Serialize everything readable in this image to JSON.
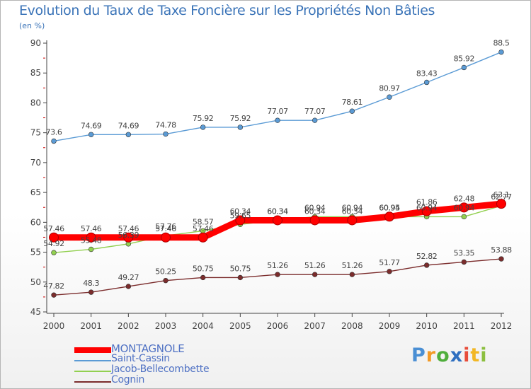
{
  "chart_data": {
    "type": "line",
    "title": "Evolution du Taux de Taxe Foncière sur les Propriétés Non Bâties",
    "subtitle": "(en %)",
    "x": [
      "2000",
      "2001",
      "2002",
      "2003",
      "2004",
      "2005",
      "2006",
      "2007",
      "2008",
      "2009",
      "2010",
      "2011",
      "2012"
    ],
    "ylim": [
      45,
      90
    ],
    "yticks": [
      45,
      50,
      55,
      60,
      65,
      70,
      75,
      80,
      85,
      90
    ],
    "grid": false,
    "legend_position": "bottom-left",
    "series": [
      {
        "name": "MONTAGNOLE",
        "color": "#ff0000",
        "values": [
          57.46,
          57.46,
          57.46,
          57.46,
          57.46,
          60.34,
          60.34,
          60.34,
          60.34,
          60.95,
          61.86,
          62.48,
          63.1
        ],
        "labels": [
          "57.46",
          "57.46",
          "57.46",
          "57.46",
          "57.46",
          "60.34",
          "60.34",
          "60.34",
          "60.34",
          "60.95",
          "61.86",
          "62.48",
          "63.1"
        ]
      },
      {
        "name": "Saint-Cassin",
        "color": "#5b9bd5",
        "values": [
          73.6,
          74.69,
          74.69,
          74.78,
          75.92,
          75.92,
          77.07,
          77.07,
          78.61,
          80.97,
          83.43,
          85.92,
          88.5
        ],
        "labels": [
          "73.6",
          "74.69",
          "74.69",
          "74.78",
          "75.92",
          "75.92",
          "77.07",
          "77.07",
          "78.61",
          "80.97",
          "83.43",
          "85.92",
          "88.5"
        ]
      },
      {
        "name": "Jacob-Bellecombette",
        "color": "#92d050",
        "values": [
          54.92,
          55.48,
          56.39,
          57.76,
          58.57,
          59.65,
          60.34,
          60.94,
          60.94,
          60.94,
          60.94,
          60.94,
          62.77
        ],
        "labels": [
          "54.92",
          "55.48",
          "56.39",
          "57.76",
          "58.57",
          "59.65",
          "60.34",
          "60.94",
          "60.94",
          "60.94",
          "60.94",
          "60.94",
          "62.77"
        ]
      },
      {
        "name": "Cognin",
        "color": "#7b2c2c",
        "values": [
          47.82,
          48.3,
          49.27,
          50.25,
          50.75,
          50.75,
          51.26,
          51.26,
          51.26,
          51.77,
          52.82,
          53.35,
          53.88
        ],
        "labels": [
          "47.82",
          "48.3",
          "49.27",
          "50.25",
          "50.75",
          "50.75",
          "51.26",
          "51.26",
          "51.26",
          "51.77",
          "52.82",
          "53.35",
          "53.88"
        ]
      }
    ]
  },
  "logo": {
    "letters": [
      "P",
      "r",
      "o",
      "x",
      "i",
      "t",
      "i"
    ],
    "colors": [
      "#4a8fd4",
      "#f29a26",
      "#4fae3c",
      "#2f6fc0",
      "#e84d3a",
      "#f2b724",
      "#8cbf3f"
    ]
  }
}
